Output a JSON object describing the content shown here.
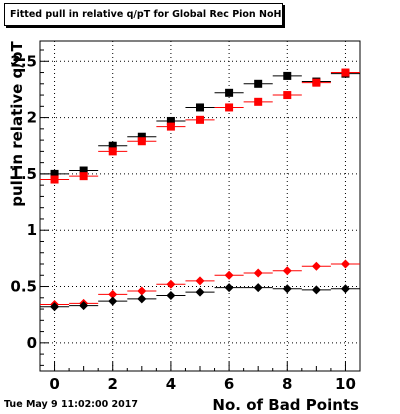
{
  "chart_data": {
    "type": "scatter",
    "title": "Fitted pull in relative q/pT  for Global Rec Pion NoHits",
    "xlabel": "No. of Bad Points",
    "ylabel": "pull in relative q/pT",
    "xlim": [
      -0.5,
      10.5
    ],
    "ylim": [
      -0.25,
      2.68
    ],
    "x_ticks": [
      "0",
      "2",
      "4",
      "6",
      "8",
      "10"
    ],
    "y_ticks": [
      "0",
      "0.5",
      "1",
      "1.5",
      "2",
      "2.5"
    ],
    "grid": true,
    "x": [
      0,
      1,
      2,
      3,
      4,
      5,
      6,
      7,
      8,
      9,
      10
    ],
    "series": [
      {
        "marker": "square",
        "color": "#000000",
        "values": [
          1.5,
          1.53,
          1.75,
          1.83,
          1.97,
          2.09,
          2.22,
          2.3,
          2.37,
          2.32,
          2.39
        ]
      },
      {
        "marker": "square",
        "color": "#ff0000",
        "values": [
          1.45,
          1.48,
          1.7,
          1.79,
          1.92,
          1.98,
          2.09,
          2.14,
          2.2,
          2.31,
          2.4
        ]
      },
      {
        "marker": "diamond",
        "color": "#ff0000",
        "values": [
          0.34,
          0.35,
          0.43,
          0.46,
          0.52,
          0.55,
          0.6,
          0.62,
          0.64,
          0.68,
          0.7
        ]
      },
      {
        "marker": "diamond",
        "color": "#000000",
        "values": [
          0.32,
          0.33,
          0.37,
          0.39,
          0.42,
          0.45,
          0.49,
          0.49,
          0.48,
          0.47,
          0.48
        ]
      }
    ]
  },
  "timestamp": "Tue May  9 11:02:00 2017"
}
